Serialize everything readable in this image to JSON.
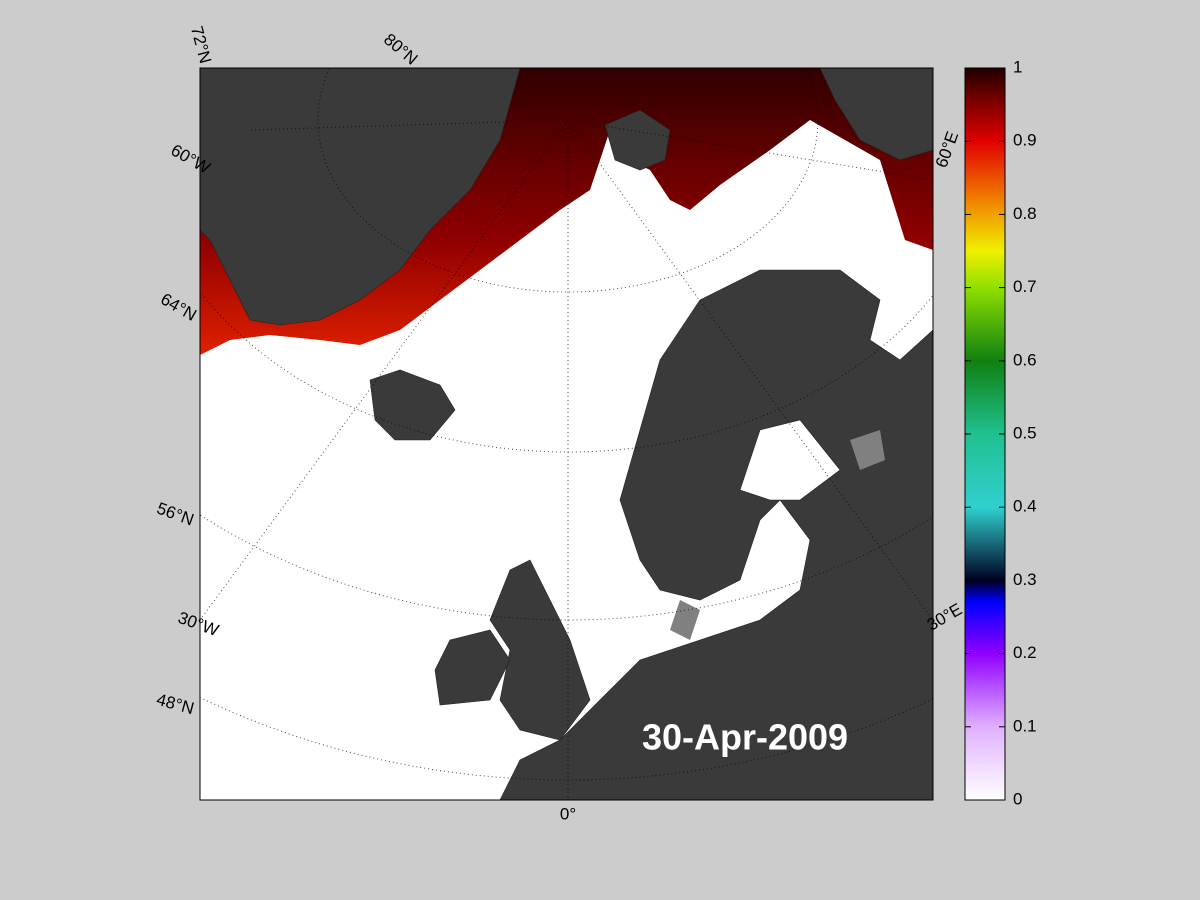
{
  "map": {
    "date_label": "30-Apr-2009",
    "grid_labels": [
      "72°N",
      "80°N",
      "60°W",
      "64°N",
      "56°N",
      "30°W",
      "48°N",
      "0°",
      "30°E",
      "60°E"
    ]
  },
  "colorbar": {
    "lim": [
      0,
      1
    ],
    "ticks": [
      0,
      0.1,
      0.2,
      0.3,
      0.4,
      0.5,
      0.6,
      0.7,
      0.8,
      0.9,
      1
    ]
  }
}
